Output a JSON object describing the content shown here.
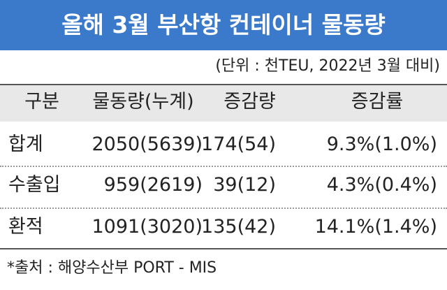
{
  "header": {
    "title": "올해 3월 부산항 컨테이너 물동량",
    "unit": "(단위 : 천TEU, 2022년 3월 대비)"
  },
  "table": {
    "columns": [
      "구분",
      "물동량(누계)",
      "증감량",
      "증감률"
    ],
    "rows": [
      [
        "합계",
        "2050(5639)",
        "174(54)",
        "9.3%(1.0%)"
      ],
      [
        "수출입",
        "959(2619)",
        "39(12)",
        "4.3%(0.4%)"
      ],
      [
        "환적",
        "1091(3020)",
        "135(42)",
        "14.1%(1.4%)"
      ]
    ]
  },
  "source": "*출처 : 해양수산부 PORT - MIS"
}
